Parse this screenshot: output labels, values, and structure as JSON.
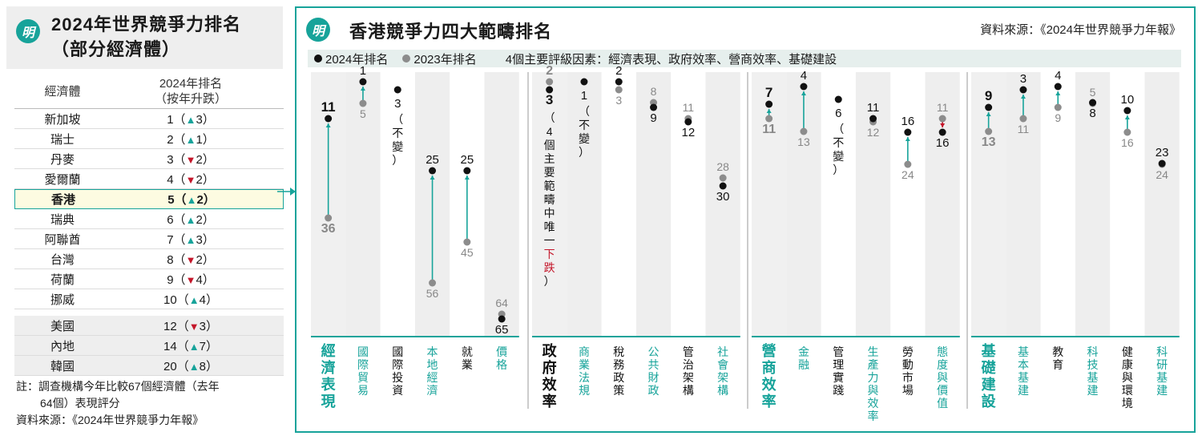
{
  "left_panel": {
    "logo": "明",
    "title_line1": "2024年世界競爭力排名",
    "title_line2": "（部分經濟體）",
    "col_economy": "經濟體",
    "col_rank_line1": "2024年排名",
    "col_rank_line2": "（按年升跌）",
    "rows": [
      {
        "name": "新加坡",
        "rank": "1",
        "dir": "up",
        "change": "3"
      },
      {
        "name": "瑞士",
        "rank": "2",
        "dir": "up",
        "change": "1"
      },
      {
        "name": "丹麥",
        "rank": "3",
        "dir": "down",
        "change": "2"
      },
      {
        "name": "愛爾蘭",
        "rank": "4",
        "dir": "down",
        "change": "2"
      },
      {
        "name": "香港",
        "rank": "5",
        "dir": "up",
        "change": "2"
      },
      {
        "name": "瑞典",
        "rank": "6",
        "dir": "up",
        "change": "2"
      },
      {
        "name": "阿聯酋",
        "rank": "7",
        "dir": "up",
        "change": "3"
      },
      {
        "name": "台灣",
        "rank": "8",
        "dir": "down",
        "change": "2"
      },
      {
        "name": "荷蘭",
        "rank": "9",
        "dir": "down",
        "change": "4"
      },
      {
        "name": "挪威",
        "rank": "10",
        "dir": "up",
        "change": "4"
      }
    ],
    "other_rows": [
      {
        "name": "美國",
        "rank": "12",
        "dir": "down",
        "change": "3"
      },
      {
        "name": "內地",
        "rank": "14",
        "dir": "up",
        "change": "7"
      },
      {
        "name": "韓國",
        "rank": "20",
        "dir": "up",
        "change": "8"
      }
    ],
    "note_line1": "註：調查機構今年比較67個經濟體（去年",
    "note_line2": "64個）表現評分",
    "source": "資料來源：《2024年世界競爭力年報》"
  },
  "right_panel": {
    "logo": "明",
    "title": "香港競爭力四大範疇排名",
    "source": "資料來源：《2024年世界競爭力年報》",
    "legend_2024": "2024年排名",
    "legend_2023": "2023年排名",
    "legend_note": "4個主要評級因素：經濟表現、政府效率、營商效率、基礎建設"
  },
  "colors": {
    "teal": "#17a39a",
    "red": "#c4162a",
    "dot_2024": "#111111",
    "dot_2023": "#8c8c8c",
    "stripe": "#eeeeee"
  },
  "chart_data": {
    "type": "dumbbell",
    "y_axis": "rank (1 at top)",
    "groups": [
      {
        "factor": "經濟表現",
        "columns": [
          {
            "label": "經濟表現",
            "main": true,
            "r2024": 11,
            "r2023": 36
          },
          {
            "label": "國際貿易",
            "r2024": 1,
            "r2023": 5
          },
          {
            "label": "國際投資",
            "r2024": 3,
            "r2023": null,
            "note": "（不變）"
          },
          {
            "label": "本地經濟",
            "r2024": 25,
            "r2023": 56
          },
          {
            "label": "就業",
            "r2024": 25,
            "r2023": 45
          },
          {
            "label": "價格",
            "r2024": 65,
            "r2023": 64
          }
        ]
      },
      {
        "factor": "政府效率",
        "columns": [
          {
            "label": "政府效率",
            "main": true,
            "r2024": 3,
            "r2023": 2,
            "note_a": "（4個主要範疇中唯一",
            "note_b": "下跌",
            "note_c": "）"
          },
          {
            "label": "商業法規",
            "r2024": 1,
            "r2023": null,
            "note": "（不變）"
          },
          {
            "label": "稅務政策",
            "r2024": 2,
            "r2023": 3
          },
          {
            "label": "公共財政",
            "r2024": 9,
            "r2023": 8
          },
          {
            "label": "管治架構",
            "r2024": 12,
            "r2023": 11
          },
          {
            "label": "社會架構",
            "r2024": 30,
            "r2023": 28
          }
        ]
      },
      {
        "factor": "營商效率",
        "columns": [
          {
            "label": "營商效率",
            "main": true,
            "r2024": 7,
            "r2023": 11
          },
          {
            "label": "金融",
            "r2024": 4,
            "r2023": 13
          },
          {
            "label": "管理實踐",
            "r2024": 6,
            "r2023": null,
            "note": "（不變）"
          },
          {
            "label": "生產力與效率",
            "r2024": 11,
            "r2023": 12
          },
          {
            "label": "勞動市場",
            "r2024": 16,
            "r2023": 24
          },
          {
            "label": "態度與價值",
            "r2024": 16,
            "r2023": 11
          }
        ]
      },
      {
        "factor": "基礎建設",
        "columns": [
          {
            "label": "基礎建設",
            "main": true,
            "r2024": 9,
            "r2023": 13
          },
          {
            "label": "基本基建",
            "r2024": 3,
            "r2023": 11
          },
          {
            "label": "教育",
            "r2024": 4,
            "r2023": 9
          },
          {
            "label": "科技基建",
            "r2024": 8,
            "r2023": 5
          },
          {
            "label": "健康與環境",
            "r2024": 10,
            "r2023": 16
          },
          {
            "label": "科研基建",
            "r2024": 23,
            "r2023": 24
          }
        ]
      }
    ]
  }
}
